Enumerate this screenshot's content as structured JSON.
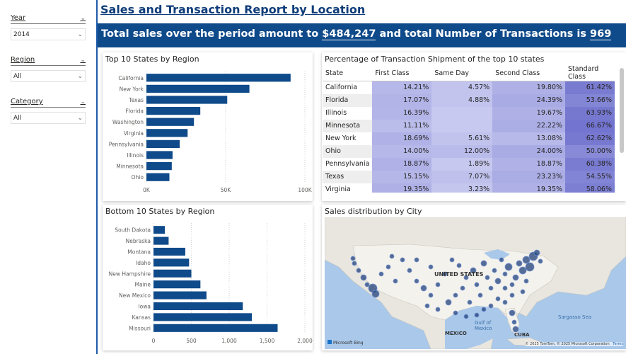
{
  "filters": {
    "year": {
      "label": "Year",
      "value": "2014"
    },
    "region": {
      "label": "Region",
      "value": "All"
    },
    "category": {
      "label": "Category",
      "value": "All"
    }
  },
  "header": {
    "title": "Sales and Transaction Report by Location",
    "banner_prefix": "Total sales over the period amount to ",
    "total_sales": "$484,247",
    "banner_middle": " and total Number of Transactions is ",
    "total_transactions": "969"
  },
  "panels": {
    "top10_title": "Top 10 States by Region",
    "bottom10_title": "Bottom 10 States by Region",
    "table_title": "Percentage of Transaction Shipment of the top 10 states",
    "map_title": "Sales distribution by City"
  },
  "chart_data": [
    {
      "type": "bar",
      "orientation": "horizontal",
      "title": "Top 10 States by Region",
      "categories": [
        "California",
        "New York",
        "Texas",
        "Florida",
        "Washington",
        "Virginia",
        "Pennsylvania",
        "Illinois",
        "Minnesota",
        "Ohio"
      ],
      "values": [
        91000,
        65000,
        51000,
        34000,
        30000,
        26000,
        21000,
        16500,
        16000,
        14500
      ],
      "xlim": [
        0,
        100000
      ],
      "xticks": [
        "0K",
        "50K",
        "100K"
      ],
      "color": "#0f4a8a"
    },
    {
      "type": "bar",
      "orientation": "horizontal",
      "title": "Bottom 10 States by Region",
      "categories": [
        "South Dakota",
        "Nebraska",
        "Montana",
        "Idaho",
        "New Hampshire",
        "Maine",
        "New Mexico",
        "Iowa",
        "Kansas",
        "Missouri"
      ],
      "values": [
        150,
        200,
        420,
        470,
        500,
        620,
        700,
        1180,
        1300,
        1640
      ],
      "xlim": [
        0,
        2000
      ],
      "xticks": [
        "0",
        "500",
        "1,000",
        "1,500",
        "2,000"
      ],
      "color": "#0f4a8a"
    }
  ],
  "table": {
    "columns": [
      "State",
      "First Class",
      "Same Day",
      "Second Class",
      "Standard Class"
    ],
    "rows": [
      {
        "state": "California",
        "first": "14.21%",
        "same": "4.57%",
        "second": "19.80%",
        "standard": "61.42%"
      },
      {
        "state": "Florida",
        "first": "17.07%",
        "same": "4.88%",
        "second": "24.39%",
        "standard": "53.66%"
      },
      {
        "state": "Illinois",
        "first": "16.39%",
        "same": "",
        "second": "19.67%",
        "standard": "63.93%"
      },
      {
        "state": "Minnesota",
        "first": "11.11%",
        "same": "",
        "second": "22.22%",
        "standard": "66.67%"
      },
      {
        "state": "New York",
        "first": "18.69%",
        "same": "5.61%",
        "second": "13.08%",
        "standard": "62.62%"
      },
      {
        "state": "Ohio",
        "first": "14.00%",
        "same": "12.00%",
        "second": "24.00%",
        "standard": "50.00%"
      },
      {
        "state": "Pennsylvania",
        "first": "18.87%",
        "same": "1.89%",
        "second": "18.87%",
        "standard": "60.38%"
      },
      {
        "state": "Texas",
        "first": "15.15%",
        "same": "7.07%",
        "second": "23.23%",
        "standard": "54.55%"
      },
      {
        "state": "Virginia",
        "first": "19.35%",
        "same": "3.23%",
        "second": "19.35%",
        "standard": "58.06%"
      }
    ]
  },
  "map": {
    "labels": {
      "country": "UNITED STATES",
      "gulf": "Gulf of Mexico",
      "sargasso": "Sargasso Sea",
      "mexico": "MEXICO",
      "cuba": "CUBA"
    },
    "attribution": "© 2025 TomTom, © 2025 Microsoft Corporation",
    "terms": "Terms",
    "brand": "Microsoft Bing"
  }
}
